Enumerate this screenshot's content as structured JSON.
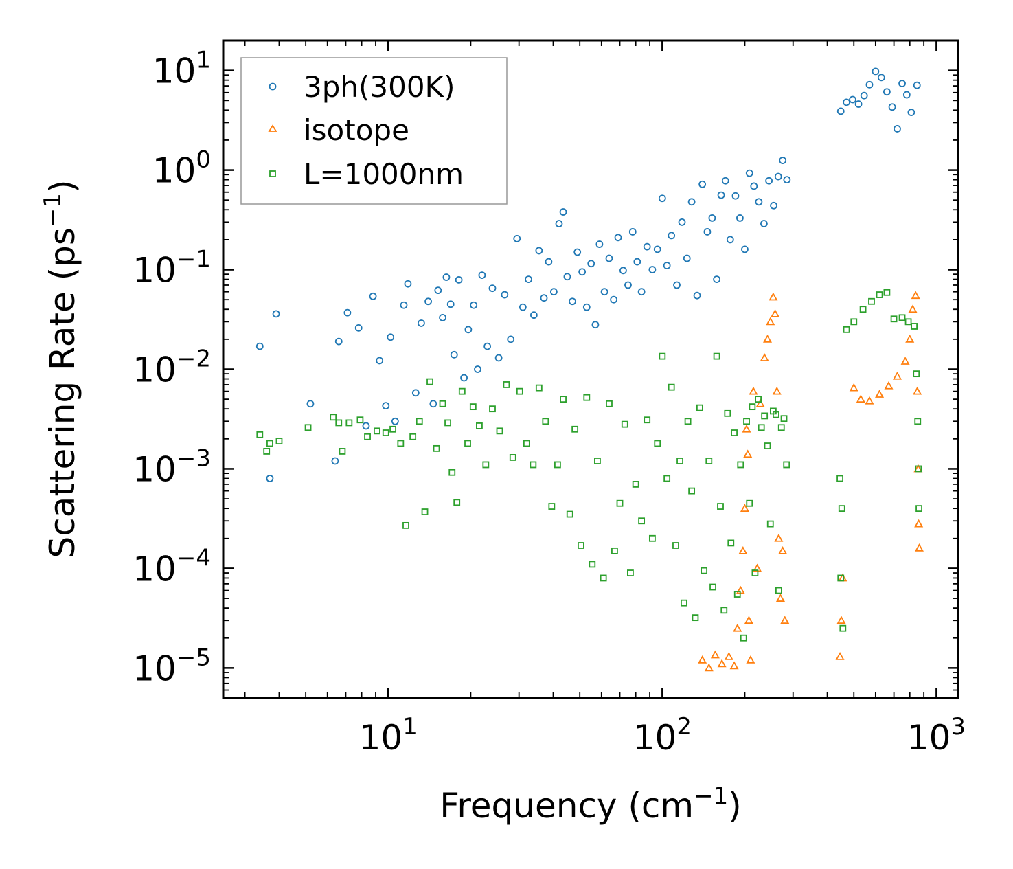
{
  "chart_data": {
    "type": "scatter",
    "title": "",
    "xlabel": "Frequency (cm",
    "xlabel_sup": "−1",
    "xlabel_suffix": ")",
    "ylabel": "Scattering Rate (ps",
    "ylabel_sup": "−1",
    "ylabel_suffix": ")",
    "xscale": "log",
    "yscale": "log",
    "xlim": [
      2.5,
      1200
    ],
    "ylim": [
      5e-06,
      20
    ],
    "x_ticks": [
      {
        "value": 10,
        "base": "10",
        "exp": "1"
      },
      {
        "value": 100,
        "base": "10",
        "exp": "2"
      },
      {
        "value": 1000,
        "base": "10",
        "exp": "3"
      }
    ],
    "y_ticks": [
      {
        "value": 10,
        "base": "10",
        "exp": "1"
      },
      {
        "value": 1,
        "base": "10",
        "exp": "0"
      },
      {
        "value": 0.1,
        "base": "10",
        "exp": "−1"
      },
      {
        "value": 0.01,
        "base": "10",
        "exp": "−2"
      },
      {
        "value": 0.001,
        "base": "10",
        "exp": "−3"
      },
      {
        "value": 0.0001,
        "base": "10",
        "exp": "−4"
      },
      {
        "value": 1e-05,
        "base": "10",
        "exp": "−5"
      }
    ],
    "legend_position": "top-left",
    "series": [
      {
        "name": "3ph(300K)",
        "marker": "circle",
        "color": "#1f77b4",
        "points": [
          [
            3.4,
            0.017
          ],
          [
            3.7,
            0.0008
          ],
          [
            3.9,
            0.036
          ],
          [
            5.2,
            0.0045
          ],
          [
            6.4,
            0.0012
          ],
          [
            6.6,
            0.019
          ],
          [
            7.1,
            0.037
          ],
          [
            7.8,
            0.026
          ],
          [
            8.3,
            0.0027
          ],
          [
            8.8,
            0.054
          ],
          [
            9.3,
            0.0122
          ],
          [
            9.8,
            0.0043
          ],
          [
            10.2,
            0.021
          ],
          [
            10.6,
            0.003
          ],
          [
            11.4,
            0.044
          ],
          [
            11.8,
            0.072
          ],
          [
            12.6,
            0.0058
          ],
          [
            13.2,
            0.029
          ],
          [
            14.0,
            0.048
          ],
          [
            14.6,
            0.0045
          ],
          [
            15.2,
            0.062
          ],
          [
            15.8,
            0.033
          ],
          [
            16.3,
            0.084
          ],
          [
            16.9,
            0.045
          ],
          [
            17.4,
            0.014
          ],
          [
            18.1,
            0.079
          ],
          [
            18.9,
            0.0082
          ],
          [
            19.6,
            0.025
          ],
          [
            20.5,
            0.044
          ],
          [
            21.2,
            0.01
          ],
          [
            22.0,
            0.088
          ],
          [
            23.0,
            0.017
          ],
          [
            24.0,
            0.065
          ],
          [
            25.3,
            0.013
          ],
          [
            26.6,
            0.056
          ],
          [
            28.0,
            0.02
          ],
          [
            29.5,
            0.205
          ],
          [
            31.0,
            0.042
          ],
          [
            32.5,
            0.08
          ],
          [
            34.0,
            0.035
          ],
          [
            35.5,
            0.155
          ],
          [
            37.0,
            0.052
          ],
          [
            38.5,
            0.12
          ],
          [
            40.2,
            0.06
          ],
          [
            42.0,
            0.29
          ],
          [
            43.5,
            0.38
          ],
          [
            45.0,
            0.085
          ],
          [
            47.0,
            0.048
          ],
          [
            49.0,
            0.15
          ],
          [
            51.0,
            0.095
          ],
          [
            53.0,
            0.042
          ],
          [
            55.0,
            0.115
          ],
          [
            57.0,
            0.028
          ],
          [
            59.0,
            0.18
          ],
          [
            61.5,
            0.06
          ],
          [
            64.0,
            0.13
          ],
          [
            66.5,
            0.05
          ],
          [
            69.0,
            0.21
          ],
          [
            72.0,
            0.098
          ],
          [
            75.0,
            0.07
          ],
          [
            78.0,
            0.24
          ],
          [
            81.0,
            0.12
          ],
          [
            84.0,
            0.06
          ],
          [
            88.0,
            0.17
          ],
          [
            92.0,
            0.1
          ],
          [
            96.0,
            0.16
          ],
          [
            100.0,
            0.52
          ],
          [
            104.0,
            0.11
          ],
          [
            108.0,
            0.22
          ],
          [
            113.0,
            0.07
          ],
          [
            118.0,
            0.3
          ],
          [
            123.0,
            0.13
          ],
          [
            128.0,
            0.48
          ],
          [
            134.0,
            0.055
          ],
          [
            140.0,
            0.72
          ],
          [
            146.0,
            0.24
          ],
          [
            152.0,
            0.33
          ],
          [
            158.0,
            0.08
          ],
          [
            164.0,
            0.56
          ],
          [
            170.0,
            0.78
          ],
          [
            177.0,
            0.2
          ],
          [
            185.0,
            0.55
          ],
          [
            192.0,
            0.33
          ],
          [
            200.0,
            0.16
          ],
          [
            208.0,
            0.93
          ],
          [
            216.0,
            0.69
          ],
          [
            225.0,
            0.48
          ],
          [
            235.0,
            0.29
          ],
          [
            245.0,
            0.78
          ],
          [
            255.0,
            0.44
          ],
          [
            265.0,
            0.86
          ],
          [
            275.0,
            1.25
          ],
          [
            285.0,
            0.8
          ],
          [
            448.0,
            3.9
          ],
          [
            470.0,
            4.8
          ],
          [
            495.0,
            5.1
          ],
          [
            520.0,
            4.6
          ],
          [
            545.0,
            5.6
          ],
          [
            570.0,
            7.2
          ],
          [
            600.0,
            9.8
          ],
          [
            630.0,
            8.5
          ],
          [
            660.0,
            6.1
          ],
          [
            690.0,
            4.3
          ],
          [
            720.0,
            2.6
          ],
          [
            750.0,
            7.4
          ],
          [
            780.0,
            5.7
          ],
          [
            810.0,
            3.8
          ],
          [
            850.0,
            7.1
          ]
        ]
      },
      {
        "name": "isotope",
        "marker": "triangle",
        "color": "#ff7f0e",
        "points": [
          [
            140,
            1.2e-05
          ],
          [
            148,
            1e-05
          ],
          [
            156,
            1.35e-05
          ],
          [
            165,
            1.1e-05
          ],
          [
            175,
            1.3e-05
          ],
          [
            183,
            1.05e-05
          ],
          [
            188,
            2.5e-05
          ],
          [
            193,
            6e-05
          ],
          [
            197,
            0.00015
          ],
          [
            200,
            0.0004
          ],
          [
            203,
            0.0025
          ],
          [
            205,
            0.0014
          ],
          [
            207,
            3e-05
          ],
          [
            210,
            1.2e-05
          ],
          [
            215,
            0.006
          ],
          [
            222,
            0.0001
          ],
          [
            228,
            0.0045
          ],
          [
            236,
            0.013
          ],
          [
            242,
            0.02
          ],
          [
            248,
            0.03
          ],
          [
            254,
            0.053
          ],
          [
            258,
            0.036
          ],
          [
            262,
            0.006
          ],
          [
            266,
            0.0002
          ],
          [
            270,
            5e-05
          ],
          [
            275,
            0.00015
          ],
          [
            280,
            3e-05
          ],
          [
            445,
            1.3e-05
          ],
          [
            450,
            3e-05
          ],
          [
            455,
            8e-05
          ],
          [
            500,
            0.0065
          ],
          [
            530,
            0.005
          ],
          [
            570,
            0.0048
          ],
          [
            620,
            0.0056
          ],
          [
            670,
            0.0068
          ],
          [
            720,
            0.0085
          ],
          [
            770,
            0.012
          ],
          [
            800,
            0.02
          ],
          [
            820,
            0.04
          ],
          [
            840,
            0.055
          ],
          [
            852,
            0.006
          ],
          [
            858,
            0.001
          ],
          [
            862,
            0.00028
          ],
          [
            866,
            0.00016
          ]
        ]
      },
      {
        "name": "L=1000nm",
        "marker": "square",
        "color": "#2ca02c",
        "points": [
          [
            3.4,
            0.0022
          ],
          [
            3.6,
            0.0015
          ],
          [
            3.7,
            0.0018
          ],
          [
            4.0,
            0.0019
          ],
          [
            5.1,
            0.0026
          ],
          [
            6.3,
            0.0033
          ],
          [
            6.6,
            0.0029
          ],
          [
            6.8,
            0.0015
          ],
          [
            7.2,
            0.0029
          ],
          [
            7.9,
            0.0031
          ],
          [
            8.4,
            0.0021
          ],
          [
            9.1,
            0.0024
          ],
          [
            9.8,
            0.0023
          ],
          [
            10.4,
            0.0025
          ],
          [
            11.1,
            0.0018
          ],
          [
            11.6,
            0.00027
          ],
          [
            12.3,
            0.0021
          ],
          [
            13.0,
            0.003
          ],
          [
            13.6,
            0.00037
          ],
          [
            14.2,
            0.0075
          ],
          [
            15.0,
            0.0016
          ],
          [
            15.8,
            0.0045
          ],
          [
            16.5,
            0.0029
          ],
          [
            17.1,
            0.00092
          ],
          [
            17.8,
            0.00046
          ],
          [
            18.6,
            0.006
          ],
          [
            19.5,
            0.0018
          ],
          [
            20.4,
            0.0042
          ],
          [
            21.5,
            0.0027
          ],
          [
            22.7,
            0.0011
          ],
          [
            24.0,
            0.004
          ],
          [
            25.5,
            0.0024
          ],
          [
            27.0,
            0.007
          ],
          [
            28.5,
            0.0013
          ],
          [
            30.2,
            0.006
          ],
          [
            32.0,
            0.0018
          ],
          [
            33.8,
            0.0011
          ],
          [
            35.5,
            0.0065
          ],
          [
            37.5,
            0.003
          ],
          [
            39.5,
            0.00042
          ],
          [
            41.5,
            0.0011
          ],
          [
            43.5,
            0.005
          ],
          [
            46.0,
            0.00035
          ],
          [
            48.0,
            0.0025
          ],
          [
            50.5,
            0.00017
          ],
          [
            53.0,
            0.0052
          ],
          [
            55.5,
            0.00011
          ],
          [
            58.0,
            0.0012
          ],
          [
            61.0,
            8e-05
          ],
          [
            64.0,
            0.0045
          ],
          [
            67.0,
            0.00015
          ],
          [
            70.0,
            0.00045
          ],
          [
            73.0,
            0.0028
          ],
          [
            76.5,
            9e-05
          ],
          [
            80.0,
            0.0007
          ],
          [
            84.0,
            0.0003
          ],
          [
            88.0,
            0.0031
          ],
          [
            92.0,
            0.0002
          ],
          [
            96.0,
            0.0018
          ],
          [
            100.0,
            0.0135
          ],
          [
            104.0,
            0.0008
          ],
          [
            108.0,
            0.0066
          ],
          [
            112.0,
            0.00017
          ],
          [
            116.0,
            0.0012
          ],
          [
            120.0,
            4.5e-05
          ],
          [
            124.0,
            0.003
          ],
          [
            128.0,
            0.0006
          ],
          [
            132.0,
            3.2e-05
          ],
          [
            137.0,
            0.0041
          ],
          [
            142.0,
            9.5e-05
          ],
          [
            148.0,
            0.0012
          ],
          [
            153.0,
            6.5e-05
          ],
          [
            158.0,
            0.0135
          ],
          [
            163.0,
            0.00042
          ],
          [
            168.0,
            3.8e-05
          ],
          [
            173.0,
            0.0036
          ],
          [
            178.0,
            0.00018
          ],
          [
            183.0,
            0.0023
          ],
          [
            188.0,
            5.5e-05
          ],
          [
            193.0,
            0.0011
          ],
          [
            198.0,
            2e-05
          ],
          [
            203.0,
            0.003
          ],
          [
            208.0,
            0.00045
          ],
          [
            213.0,
            0.0042
          ],
          [
            218.0,
            9e-05
          ],
          [
            224.0,
            0.005
          ],
          [
            230.0,
            0.0026
          ],
          [
            236.0,
            0.0034
          ],
          [
            242.0,
            0.0017
          ],
          [
            248.0,
            0.00028
          ],
          [
            254.0,
            0.0038
          ],
          [
            260.0,
            0.0035
          ],
          [
            266.0,
            6e-05
          ],
          [
            272.0,
            0.0026
          ],
          [
            278.0,
            0.0032
          ],
          [
            284.0,
            0.0011
          ],
          [
            445.0,
            0.0008
          ],
          [
            448.0,
            8e-05
          ],
          [
            452.0,
            0.0004
          ],
          [
            456.0,
            2.5e-05
          ],
          [
            470.0,
            0.025
          ],
          [
            500.0,
            0.03
          ],
          [
            540.0,
            0.04
          ],
          [
            580.0,
            0.048
          ],
          [
            620.0,
            0.056
          ],
          [
            660.0,
            0.059
          ],
          [
            700.0,
            0.032
          ],
          [
            750.0,
            0.033
          ],
          [
            790.0,
            0.03
          ],
          [
            830.0,
            0.027
          ],
          [
            845.0,
            0.009
          ],
          [
            855.0,
            0.003
          ],
          [
            860.0,
            0.001
          ],
          [
            864.0,
            0.0004
          ]
        ]
      }
    ]
  }
}
